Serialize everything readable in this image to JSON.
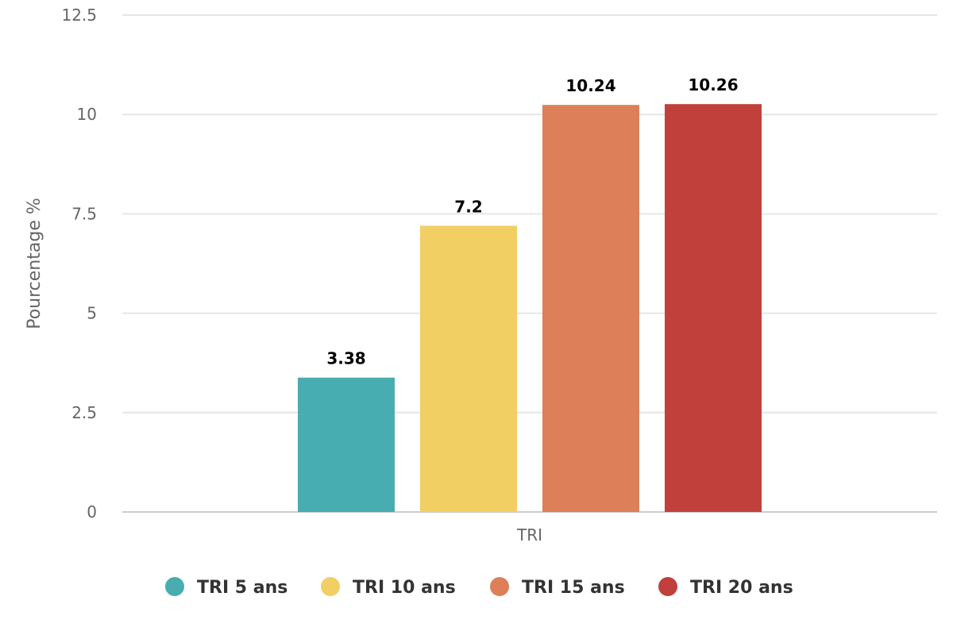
{
  "chart_data": {
    "type": "bar",
    "categories": [
      "TRI"
    ],
    "series": [
      {
        "name": "TRI 5 ans",
        "values": [
          3.38
        ],
        "color": "#48ADB1"
      },
      {
        "name": "TRI 10 ans",
        "values": [
          7.2
        ],
        "color": "#F1CF63"
      },
      {
        "name": "TRI 15 ans",
        "values": [
          10.24
        ],
        "color": "#DD7F59"
      },
      {
        "name": "TRI 20 ans",
        "values": [
          10.26
        ],
        "color": "#C1403C"
      }
    ],
    "ylabel": "Pourcentage %",
    "xlabel": "",
    "ylim": [
      0,
      12.5
    ],
    "yticks": [
      "0",
      "2.5",
      "5",
      "7.5",
      "10",
      "12.5"
    ],
    "data_labels": [
      "3.38",
      "7.2",
      "10.24",
      "10.26"
    ],
    "grid": true,
    "legend_position": "bottom"
  }
}
